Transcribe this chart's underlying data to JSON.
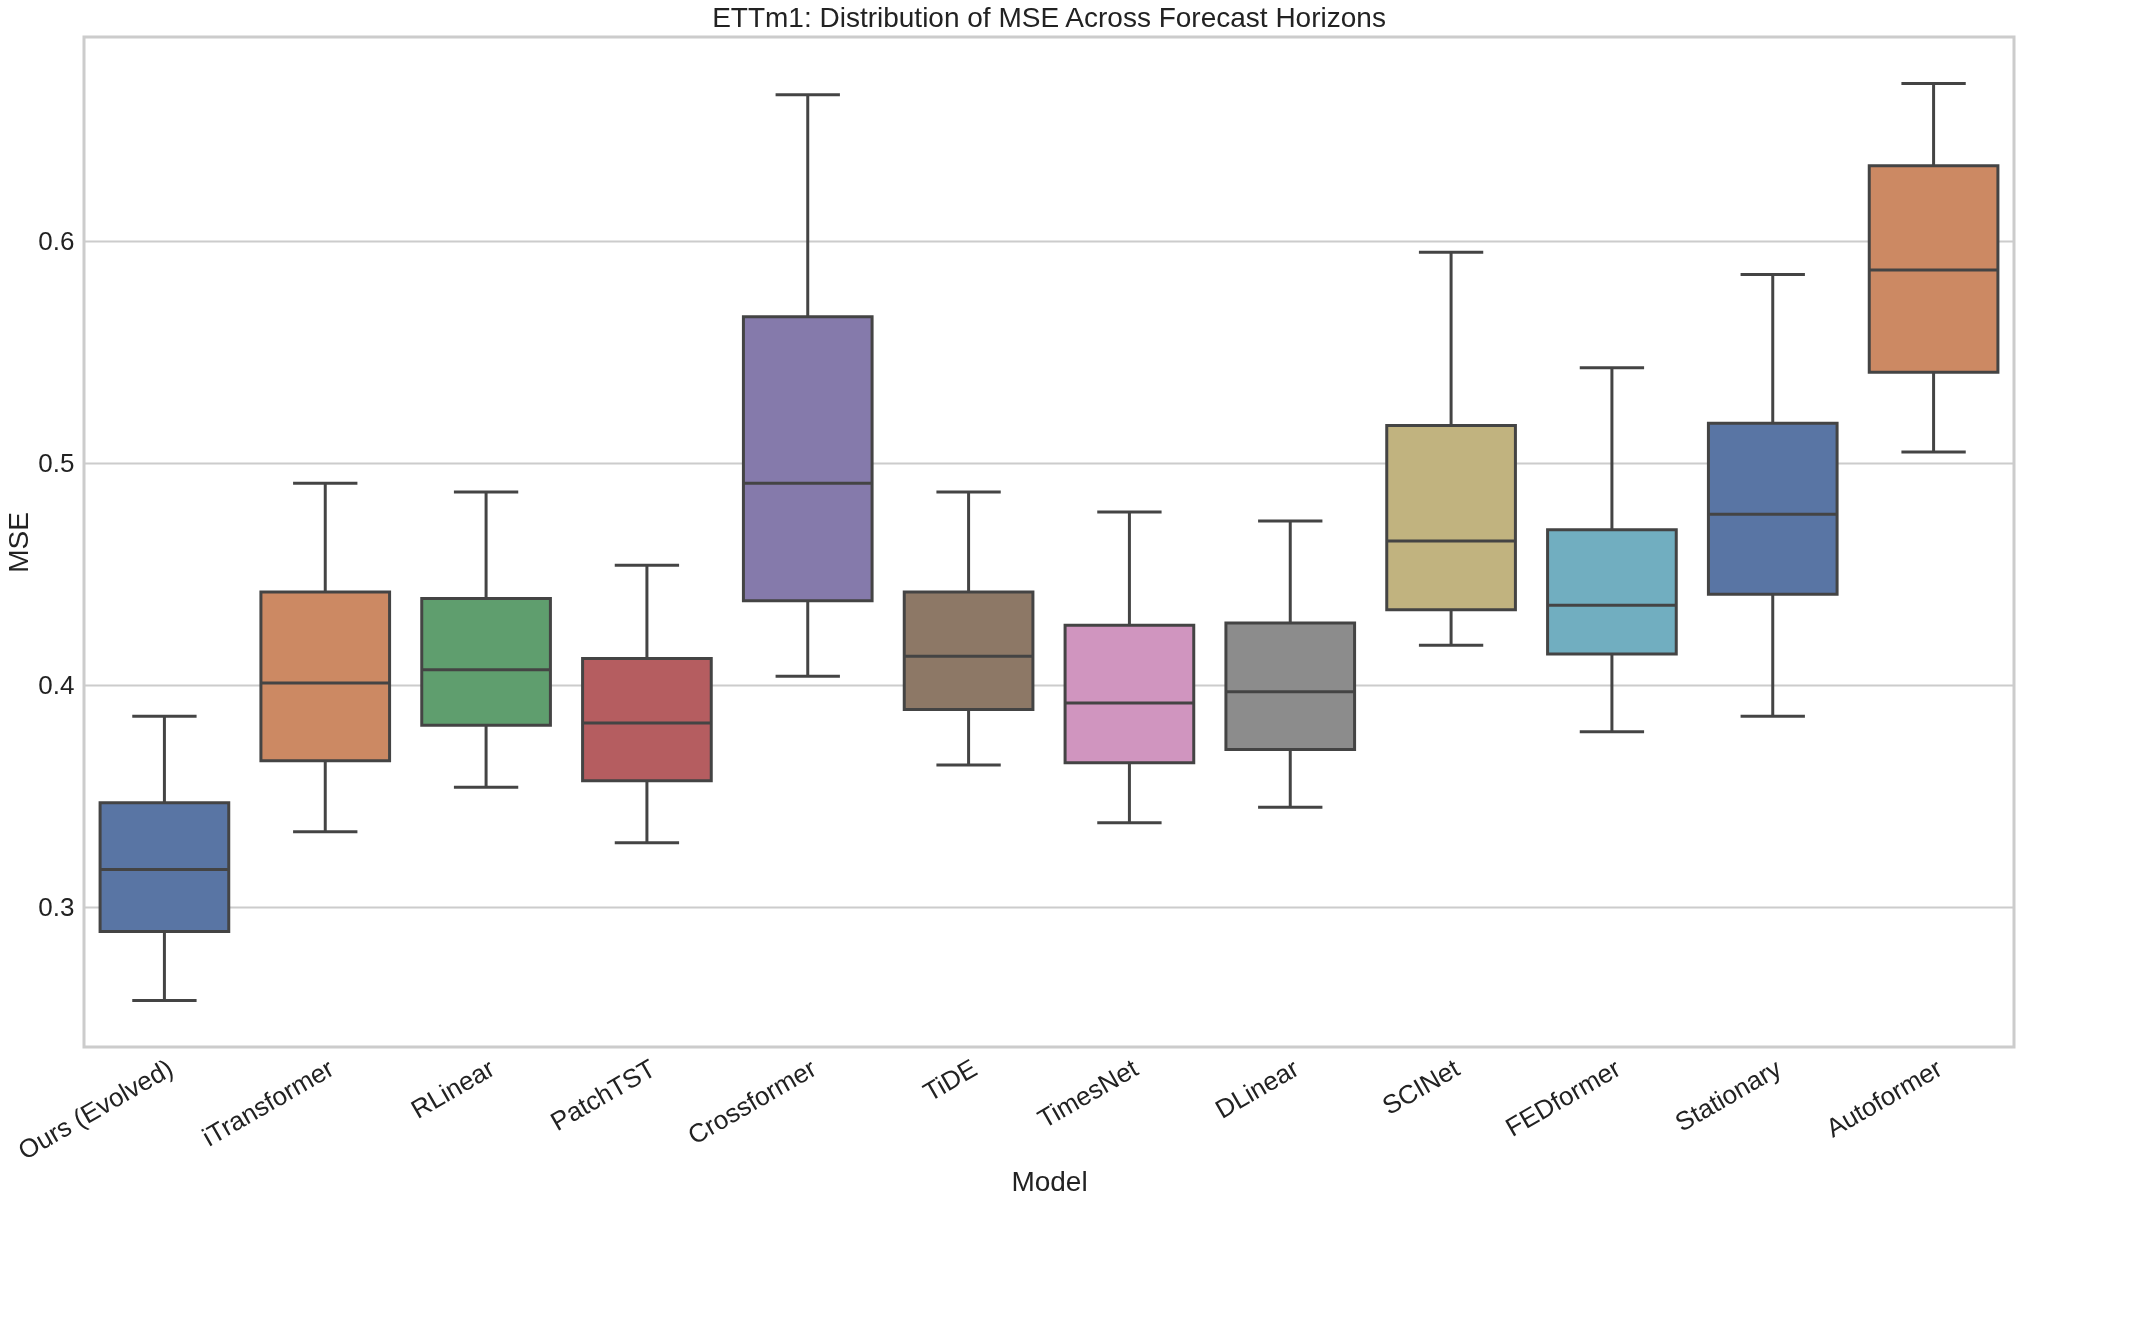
{
  "chart_data": {
    "type": "box",
    "title": "ETTm1: Distribution of MSE Across Forecast Horizons",
    "xlabel": "Model",
    "ylabel": "MSE",
    "categories": [
      "Ours (Evolved)",
      "iTransformer",
      "RLinear",
      "PatchTST",
      "Crossformer",
      "TiDE",
      "TimesNet",
      "DLinear",
      "SCINet",
      "FEDformer",
      "Stationary",
      "Autoformer"
    ],
    "boxes": [
      {
        "low": 0.258,
        "q1": 0.289,
        "median": 0.317,
        "q3": 0.347,
        "high": 0.386
      },
      {
        "low": 0.334,
        "q1": 0.366,
        "median": 0.401,
        "q3": 0.442,
        "high": 0.491
      },
      {
        "low": 0.354,
        "q1": 0.382,
        "median": 0.407,
        "q3": 0.439,
        "high": 0.487
      },
      {
        "low": 0.329,
        "q1": 0.357,
        "median": 0.383,
        "q3": 0.412,
        "high": 0.454
      },
      {
        "low": 0.404,
        "q1": 0.438,
        "median": 0.491,
        "q3": 0.566,
        "high": 0.666
      },
      {
        "low": 0.364,
        "q1": 0.389,
        "median": 0.413,
        "q3": 0.442,
        "high": 0.487
      },
      {
        "low": 0.338,
        "q1": 0.365,
        "median": 0.392,
        "q3": 0.427,
        "high": 0.478
      },
      {
        "low": 0.345,
        "q1": 0.371,
        "median": 0.397,
        "q3": 0.428,
        "high": 0.474
      },
      {
        "low": 0.418,
        "q1": 0.434,
        "median": 0.465,
        "q3": 0.517,
        "high": 0.595
      },
      {
        "low": 0.379,
        "q1": 0.414,
        "median": 0.436,
        "q3": 0.47,
        "high": 0.543
      },
      {
        "low": 0.386,
        "q1": 0.441,
        "median": 0.477,
        "q3": 0.518,
        "high": 0.585
      },
      {
        "low": 0.505,
        "q1": 0.541,
        "median": 0.587,
        "q3": 0.634,
        "high": 0.671
      }
    ],
    "colors": [
      "#5975a4",
      "#cc8963",
      "#5f9e6e",
      "#b55d60",
      "#857aab",
      "#8d7866",
      "#d095bf",
      "#8c8c8c",
      "#c1b37f",
      "#71aec0",
      "#5975a4",
      "#cc8963"
    ],
    "ylim": [
      0.237,
      0.692
    ],
    "yticks": [
      0.3,
      0.4,
      0.5,
      0.6
    ],
    "grid": "y"
  }
}
